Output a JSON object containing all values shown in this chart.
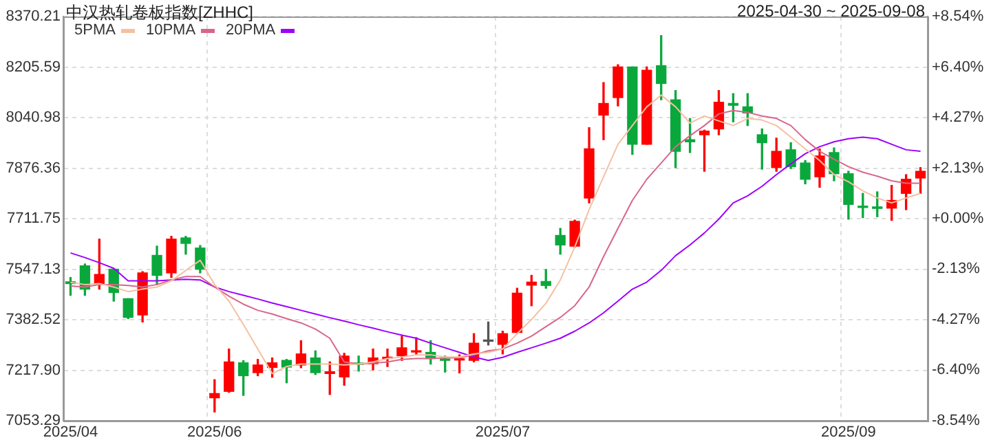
{
  "chart_data": {
    "type": "candlestick",
    "title": "中汉热轧卷板指数[ZHHC]",
    "subtitle": "2025-04-30 ~ 2025-09-08",
    "categories": [
      "2025/04",
      null,
      null,
      null,
      null,
      null,
      null,
      null,
      null,
      null,
      "2025/06",
      null,
      null,
      null,
      null,
      null,
      null,
      null,
      null,
      null,
      null,
      null,
      null,
      null,
      null,
      null,
      null,
      null,
      null,
      null,
      "2025/07",
      null,
      null,
      null,
      null,
      null,
      null,
      null,
      null,
      null,
      null,
      null,
      null,
      null,
      null,
      null,
      null,
      null,
      null,
      null,
      null,
      null,
      null,
      null,
      "2025/09",
      null,
      null,
      null,
      null,
      null
    ],
    "ohlc": [
      [
        7506,
        7520,
        7462,
        7500
      ],
      [
        7558,
        7564,
        7462,
        7482
      ],
      [
        7500,
        7645,
        7482,
        7530
      ],
      [
        7547,
        7547,
        7443,
        7471
      ],
      [
        7451,
        7451,
        7386,
        7390
      ],
      [
        7398,
        7539,
        7375,
        7535
      ],
      [
        7592,
        7622,
        7497,
        7527
      ],
      [
        7535,
        7654,
        7520,
        7645
      ],
      [
        7649,
        7654,
        7596,
        7631
      ],
      [
        7616,
        7624,
        7535,
        7547
      ],
      [
        7128,
        7187,
        7082,
        7142
      ],
      [
        7149,
        7287,
        7146,
        7245
      ],
      [
        7242,
        7249,
        7136,
        7200
      ],
      [
        7210,
        7253,
        7200,
        7235
      ],
      [
        7227,
        7258,
        7195,
        7242
      ],
      [
        7250,
        7253,
        7177,
        7228
      ],
      [
        7235,
        7314,
        7226,
        7271
      ],
      [
        7258,
        7281,
        7204,
        7210
      ],
      [
        7207,
        7245,
        7139,
        7213
      ],
      [
        7196,
        7273,
        7169,
        7264
      ],
      [
        7239,
        7264,
        7215,
        7237
      ],
      [
        7239,
        7287,
        7219,
        7258
      ],
      [
        7256,
        7287,
        7230,
        7258
      ],
      [
        7265,
        7329,
        7250,
        7291
      ],
      [
        7277,
        7324,
        7268,
        7279
      ],
      [
        7276,
        7314,
        7238,
        7256
      ],
      [
        7252,
        7264,
        7212,
        7250
      ],
      [
        7251,
        7268,
        7209,
        7253
      ],
      [
        7250,
        7337,
        7245,
        7306
      ],
      [
        7312,
        7375,
        7300,
        7312
      ],
      [
        7302,
        7345,
        7271,
        7337
      ],
      [
        7341,
        7485,
        7341,
        7469
      ],
      [
        7495,
        7527,
        7428,
        7505
      ],
      [
        7507,
        7546,
        7485,
        7494
      ],
      [
        7657,
        7680,
        7596,
        7626
      ],
      [
        7622,
        7707,
        7619,
        7703
      ],
      [
        7779,
        8008,
        7763,
        7939
      ],
      [
        8049,
        8155,
        7969,
        8087
      ],
      [
        8106,
        8213,
        8079,
        8206
      ],
      [
        8206,
        8206,
        7921,
        7954
      ],
      [
        7954,
        8206,
        7954,
        8195
      ],
      [
        8210,
        8308,
        8099,
        8152
      ],
      [
        8099,
        8129,
        7878,
        7931
      ],
      [
        7969,
        8038,
        7927,
        7962
      ],
      [
        7985,
        8000,
        7866,
        7997
      ],
      [
        8004,
        8129,
        7985,
        8091
      ],
      [
        8087,
        8119,
        8027,
        8081
      ],
      [
        8076,
        8119,
        8015,
        8056
      ],
      [
        7985,
        8004,
        7873,
        7959
      ],
      [
        7878,
        7974,
        7866,
        7931
      ],
      [
        7936,
        7959,
        7875,
        7881
      ],
      [
        7893,
        7901,
        7825,
        7840
      ],
      [
        7848,
        7939,
        7814,
        7916
      ],
      [
        7927,
        7942,
        7835,
        7858
      ],
      [
        7858,
        7866,
        7710,
        7758
      ],
      [
        7750,
        7794,
        7715,
        7748
      ],
      [
        7750,
        7799,
        7718,
        7745
      ],
      [
        7746,
        7820,
        7706,
        7771
      ],
      [
        7794,
        7855,
        7741,
        7840
      ],
      [
        7844,
        7878,
        7794,
        7866
      ]
    ],
    "colors": [
      "#0aa83c",
      "#0aa83c",
      "#ff0000",
      "#0aa83c",
      "#0aa83c",
      "#ff0000",
      "#0aa83c",
      "#ff0000",
      "#0aa83c",
      "#0aa83c",
      "#ff0000",
      "#ff0000",
      "#0aa83c",
      "#ff0000",
      "#ff0000",
      "#0aa83c",
      "#ff0000",
      "#0aa83c",
      "#ff0000",
      "#ff0000",
      "#0aa83c",
      "#ff0000",
      "#ff0000",
      "#ff0000",
      "#ff0000",
      "#0aa83c",
      "#0aa83c",
      "#ff0000",
      "#ff0000",
      "#555555",
      "#ff0000",
      "#ff0000",
      "#ff0000",
      "#0aa83c",
      "#0aa83c",
      "#ff0000",
      "#ff0000",
      "#ff0000",
      "#ff0000",
      "#0aa83c",
      "#ff0000",
      "#0aa83c",
      "#0aa83c",
      "#0aa83c",
      "#ff0000",
      "#ff0000",
      "#0aa83c",
      "#0aa83c",
      "#0aa83c",
      "#ff0000",
      "#0aa83c",
      "#0aa83c",
      "#ff0000",
      "#0aa83c",
      "#0aa83c",
      "#0aa83c",
      "#0aa83c",
      "#ff0000",
      "#ff0000",
      "#ff0000"
    ],
    "series": [
      {
        "name": "5PMA",
        "type": "line",
        "color": "#f5c0a2",
        "values": [
          7504,
          7497,
          7500,
          7489,
          7474,
          7482,
          7489,
          7509,
          7543,
          7576,
          7497,
          7443,
          7367,
          7287,
          7207,
          7230,
          7238,
          7238,
          7238,
          7235,
          7238,
          7245,
          7256,
          7261,
          7268,
          7268,
          7261,
          7261,
          7271,
          7276,
          7287,
          7337,
          7383,
          7436,
          7512,
          7619,
          7741,
          7848,
          7954,
          8015,
          8076,
          8114,
          8076,
          8023,
          8046,
          8030,
          8015,
          8038,
          8033,
          8015,
          7977,
          7939,
          7901,
          7855,
          7832,
          7802,
          7779,
          7763,
          7779,
          7794
        ]
      },
      {
        "name": "10PMA",
        "type": "line",
        "color": "#d8668a",
        "values": [
          7492,
          7489,
          7497,
          7497,
          7494,
          7489,
          7497,
          7512,
          7523,
          7523,
          7489,
          7459,
          7433,
          7413,
          7401,
          7386,
          7372,
          7352,
          7322,
          7245,
          7238,
          7241,
          7245,
          7253,
          7256,
          7256,
          7258,
          7258,
          7268,
          7281,
          7287,
          7306,
          7329,
          7360,
          7390,
          7428,
          7489,
          7588,
          7680,
          7771,
          7840,
          7893,
          7946,
          7982,
          8015,
          8053,
          8064,
          8058,
          8046,
          8038,
          8015,
          7969,
          7931,
          7905,
          7881,
          7863,
          7850,
          7835,
          7827,
          7827
        ]
      },
      {
        "name": "20PMA",
        "type": "line",
        "color": "#9d00ff",
        "values": [
          7600,
          7585,
          7568,
          7550,
          7509,
          7509,
          7509,
          7512,
          7514,
          7512,
          7489,
          7474,
          7462,
          7450,
          7437,
          7425,
          7413,
          7401,
          7389,
          7378,
          7366,
          7355,
          7343,
          7332,
          7322,
          7306,
          7291,
          7276,
          7261,
          7250,
          7260,
          7276,
          7291,
          7306,
          7322,
          7345,
          7372,
          7405,
          7443,
          7482,
          7505,
          7543,
          7591,
          7626,
          7665,
          7710,
          7763,
          7786,
          7817,
          7855,
          7890,
          7923,
          7946,
          7962,
          7972,
          7977,
          7972,
          7954,
          7936,
          7931
        ]
      }
    ],
    "ylim": [
      7053.29,
      8370.21
    ],
    "yticks": [
      7053.29,
      {
        "value": 7217.9,
        "label": "7217.90"
      },
      7382.52,
      7547.13,
      7711.75,
      7876.36,
      8040.98,
      8205.59,
      8370.21
    ],
    "y2lim": [
      -8.54,
      8.54
    ],
    "y2ticks": [
      {
        "value": -8.54,
        "label": "-8.54%"
      },
      {
        "value": -6.4,
        "label": "-6.40%"
      },
      {
        "value": -4.27,
        "label": "-4.27%"
      },
      {
        "value": -2.13,
        "label": "-2.13%"
      },
      {
        "value": 0,
        "label": "+0.00%"
      },
      {
        "value": 2.13,
        "label": "+2.13%"
      },
      {
        "value": 4.27,
        "label": "+4.27%"
      },
      {
        "value": 6.4,
        "label": "+6.40%"
      },
      {
        "value": 8.54,
        "label": "+8.54%"
      }
    ],
    "grid": true,
    "legend": "top left"
  }
}
